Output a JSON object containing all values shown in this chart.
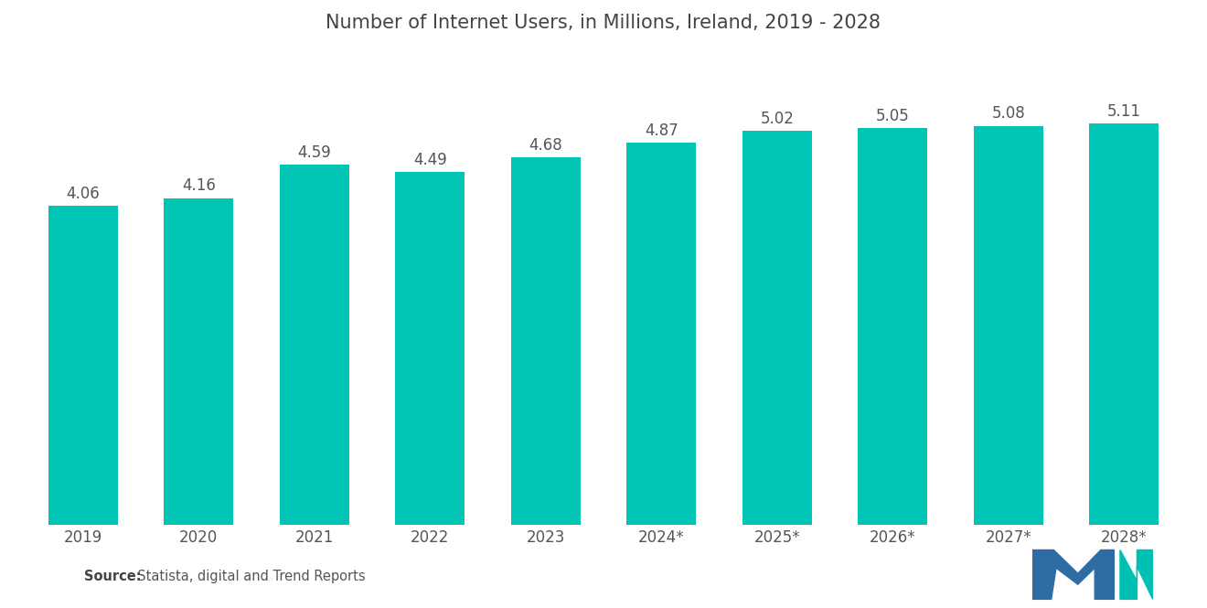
{
  "title": "Number of Internet Users, in Millions, Ireland, 2019 - 2028",
  "categories": [
    "2019",
    "2020",
    "2021",
    "2022",
    "2023",
    "2024*",
    "2025*",
    "2026*",
    "2027*",
    "2028*"
  ],
  "values": [
    4.06,
    4.16,
    4.59,
    4.49,
    4.68,
    4.87,
    5.02,
    5.05,
    5.08,
    5.11
  ],
  "bar_color": "#00C5B5",
  "background_color": "#ffffff",
  "title_fontsize": 15,
  "label_fontsize": 12,
  "tick_fontsize": 12,
  "source_bold": "Source:",
  "source_normal": "  Statista, digital and Trend Reports",
  "ylim": [
    0,
    6.0
  ],
  "bar_width": 0.6
}
